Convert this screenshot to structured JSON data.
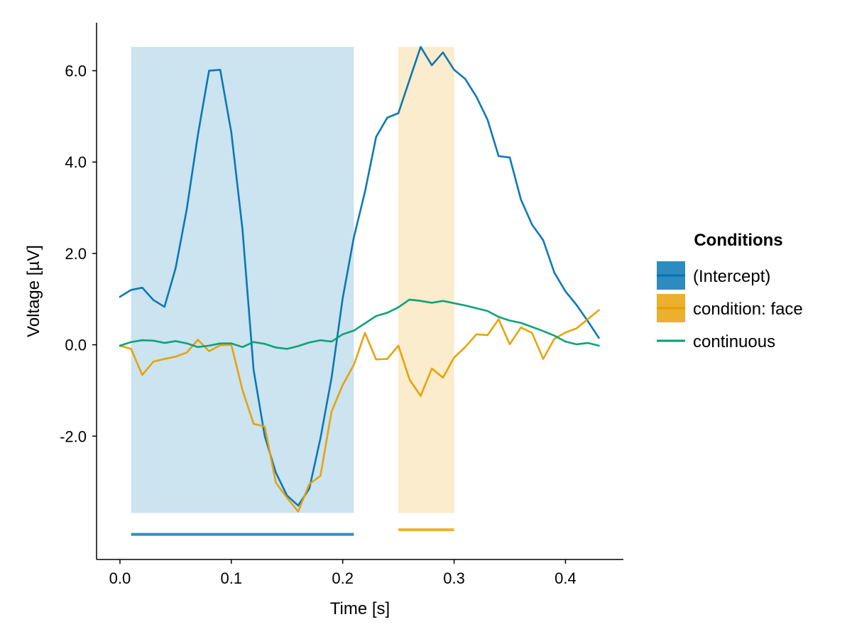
{
  "chart_data": {
    "type": "line",
    "xlabel": "Time [s]",
    "ylabel": "Voltage [µV]",
    "xlim": [
      -0.021,
      0.452
    ],
    "ylim": [
      -4.7,
      7.05
    ],
    "x_ticks": [
      0.0,
      0.1,
      0.2,
      0.3,
      0.4
    ],
    "x_tick_labels": [
      "0.0",
      "0.1",
      "0.2",
      "0.3",
      "0.4"
    ],
    "y_ticks": [
      -2.0,
      0.0,
      2.0,
      4.0,
      6.0
    ],
    "y_tick_labels": [
      "-2.0",
      "0.0",
      "2.0",
      "4.0",
      "6.0"
    ],
    "grid": false,
    "legend": {
      "title": "Conditions",
      "placement": "right",
      "entries": [
        {
          "label": "(Intercept)",
          "color": "#0072b2",
          "type": "band+line"
        },
        {
          "label": "condition: face",
          "color": "#e69f00",
          "type": "band+line"
        },
        {
          "label": "continuous",
          "color": "#009e73",
          "type": "line"
        }
      ]
    },
    "x": [
      0.0,
      0.01,
      0.02,
      0.03,
      0.04,
      0.05,
      0.06,
      0.07,
      0.08,
      0.09,
      0.1,
      0.11,
      0.12,
      0.13,
      0.14,
      0.15,
      0.16,
      0.17,
      0.18,
      0.19,
      0.2,
      0.21,
      0.22,
      0.23,
      0.24,
      0.25,
      0.26,
      0.27,
      0.28,
      0.29,
      0.3,
      0.31,
      0.32,
      0.33,
      0.34,
      0.35,
      0.36,
      0.37,
      0.38,
      0.39,
      0.4,
      0.41,
      0.42,
      0.43
    ],
    "series": [
      {
        "name": "(Intercept)",
        "color": "#0072b2",
        "values": [
          1.05,
          1.2,
          1.25,
          0.98,
          0.83,
          1.68,
          2.97,
          4.6,
          6.0,
          6.02,
          4.65,
          2.53,
          -0.55,
          -2.0,
          -2.8,
          -3.3,
          -3.52,
          -3.15,
          -2.05,
          -0.72,
          1.02,
          2.35,
          3.35,
          4.55,
          4.97,
          5.07,
          5.8,
          6.52,
          6.12,
          6.4,
          6.02,
          5.82,
          5.43,
          4.93,
          4.13,
          4.1,
          3.18,
          2.63,
          2.29,
          1.58,
          1.17,
          0.87,
          0.52,
          0.15
        ]
      },
      {
        "name": "condition: face",
        "color": "#e69f00",
        "values": [
          -0.02,
          -0.09,
          -0.66,
          -0.37,
          -0.31,
          -0.26,
          -0.17,
          0.11,
          -0.14,
          -0.01,
          0.0,
          -0.99,
          -1.73,
          -1.79,
          -3.02,
          -3.35,
          -3.65,
          -3.05,
          -2.87,
          -1.46,
          -0.88,
          -0.44,
          0.26,
          -0.32,
          -0.31,
          -0.02,
          -0.76,
          -1.12,
          -0.52,
          -0.72,
          -0.28,
          -0.05,
          0.23,
          0.21,
          0.56,
          0.01,
          0.38,
          0.26,
          -0.31,
          0.13,
          0.27,
          0.36,
          0.56,
          0.76
        ]
      },
      {
        "name": "continuous",
        "color": "#009e73",
        "values": [
          -0.02,
          0.06,
          0.1,
          0.09,
          0.04,
          0.08,
          0.03,
          -0.05,
          -0.02,
          0.03,
          0.03,
          -0.05,
          0.06,
          0.02,
          -0.06,
          -0.09,
          -0.03,
          0.05,
          0.1,
          0.07,
          0.23,
          0.31,
          0.47,
          0.63,
          0.7,
          0.82,
          0.99,
          0.96,
          0.92,
          0.96,
          0.91,
          0.86,
          0.8,
          0.74,
          0.61,
          0.53,
          0.48,
          0.39,
          0.3,
          0.2,
          0.07,
          0.01,
          0.04,
          -0.02
        ]
      }
    ],
    "significance_bands": [
      {
        "series": "(Intercept)",
        "color": "#0072b2",
        "opacity": 0.2,
        "x_start": 0.01,
        "x_end": 0.21,
        "y_from": -3.68,
        "y_to": 6.52,
        "marker_y": -4.15
      },
      {
        "series": "condition: face",
        "color": "#e69f00",
        "opacity": 0.2,
        "x_start": 0.25,
        "x_end": 0.3,
        "y_from": -3.68,
        "y_to": 6.52,
        "marker_y": -4.05
      }
    ]
  }
}
